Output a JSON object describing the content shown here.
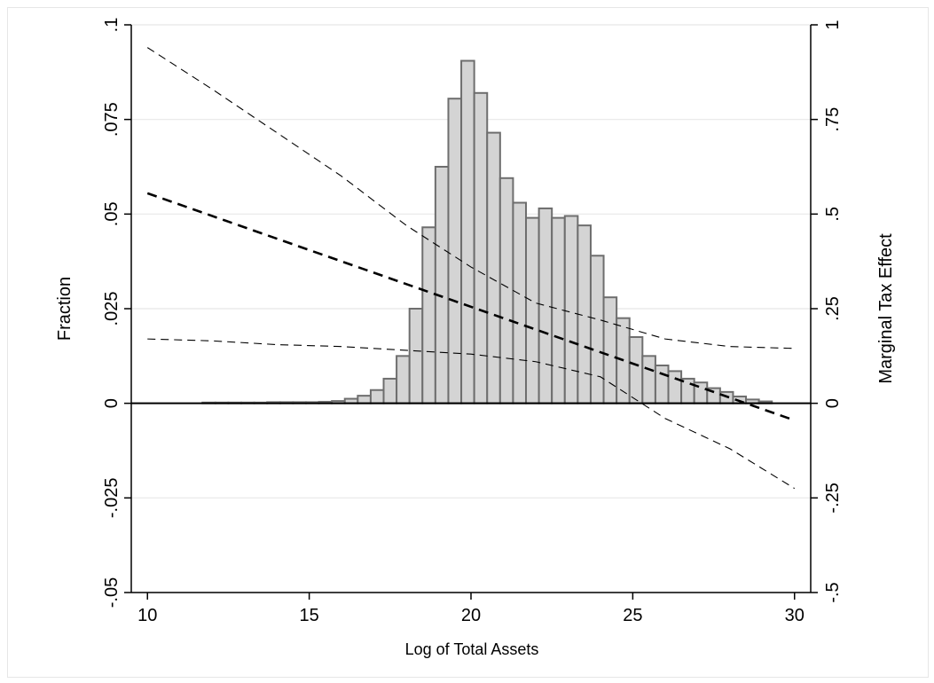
{
  "chart_data": {
    "type": "bar",
    "xlabel": "Log of Total Assets",
    "ylabel_left": "Fraction",
    "ylabel_right": "Marginal Tax Effect",
    "xlim": [
      9.5,
      30.5
    ],
    "ylim_left": [
      -0.05,
      0.1
    ],
    "ylim_right": [
      -0.5,
      1.0
    ],
    "x_ticks": [
      "10",
      "15",
      "20",
      "25",
      "30"
    ],
    "y_ticks_left": [
      "-.05",
      "-.025",
      "0",
      ".025",
      ".05",
      ".075",
      ".1"
    ],
    "y_ticks_right": [
      "-.5",
      "-.25",
      "0",
      ".25",
      ".5",
      ".75",
      "1"
    ],
    "grid": true,
    "histogram": {
      "bin_width": 0.4,
      "bins": [
        {
          "x": 11.9,
          "y": 0.0002
        },
        {
          "x": 12.3,
          "y": 0.0002
        },
        {
          "x": 12.7,
          "y": 0.0002
        },
        {
          "x": 13.1,
          "y": 0.0002
        },
        {
          "x": 13.5,
          "y": 0.0002
        },
        {
          "x": 13.9,
          "y": 0.0003
        },
        {
          "x": 14.3,
          "y": 0.0003
        },
        {
          "x": 14.7,
          "y": 0.0003
        },
        {
          "x": 15.1,
          "y": 0.0003
        },
        {
          "x": 15.5,
          "y": 0.0004
        },
        {
          "x": 15.9,
          "y": 0.0006
        },
        {
          "x": 16.3,
          "y": 0.0012
        },
        {
          "x": 16.7,
          "y": 0.002
        },
        {
          "x": 17.1,
          "y": 0.0035
        },
        {
          "x": 17.5,
          "y": 0.0065
        },
        {
          "x": 17.9,
          "y": 0.0125
        },
        {
          "x": 18.3,
          "y": 0.025
        },
        {
          "x": 18.7,
          "y": 0.0465
        },
        {
          "x": 19.1,
          "y": 0.0625
        },
        {
          "x": 19.5,
          "y": 0.0805
        },
        {
          "x": 19.9,
          "y": 0.0905
        },
        {
          "x": 20.3,
          "y": 0.082
        },
        {
          "x": 20.7,
          "y": 0.0715
        },
        {
          "x": 21.1,
          "y": 0.0595
        },
        {
          "x": 21.5,
          "y": 0.053
        },
        {
          "x": 21.9,
          "y": 0.049
        },
        {
          "x": 22.3,
          "y": 0.0515
        },
        {
          "x": 22.7,
          "y": 0.049
        },
        {
          "x": 23.1,
          "y": 0.0495
        },
        {
          "x": 23.5,
          "y": 0.047
        },
        {
          "x": 23.9,
          "y": 0.039
        },
        {
          "x": 24.3,
          "y": 0.028
        },
        {
          "x": 24.7,
          "y": 0.0225
        },
        {
          "x": 25.1,
          "y": 0.0175
        },
        {
          "x": 25.5,
          "y": 0.0125
        },
        {
          "x": 25.9,
          "y": 0.01
        },
        {
          "x": 26.3,
          "y": 0.0085
        },
        {
          "x": 26.7,
          "y": 0.0065
        },
        {
          "x": 27.1,
          "y": 0.0055
        },
        {
          "x": 27.5,
          "y": 0.004
        },
        {
          "x": 27.9,
          "y": 0.003
        },
        {
          "x": 28.3,
          "y": 0.0018
        },
        {
          "x": 28.7,
          "y": 0.001
        },
        {
          "x": 29.1,
          "y": 0.0005
        }
      ]
    },
    "series": [
      {
        "axis": "right",
        "style": "dashed-thick",
        "x": [
          10,
          30
        ],
        "y": [
          0.555,
          -0.045
        ]
      },
      {
        "axis": "right",
        "style": "dashed-thin",
        "x": [
          10,
          12,
          14,
          16,
          18,
          20,
          22,
          24,
          26,
          28,
          30
        ],
        "y": [
          0.94,
          0.83,
          0.715,
          0.6,
          0.47,
          0.36,
          0.265,
          0.22,
          0.17,
          0.15,
          0.145
        ]
      },
      {
        "axis": "right",
        "style": "dashed-thin",
        "x": [
          10,
          12,
          14,
          16,
          18,
          20,
          22,
          24,
          26,
          28,
          30
        ],
        "y": [
          0.17,
          0.165,
          0.155,
          0.15,
          0.14,
          0.13,
          0.11,
          0.07,
          -0.04,
          -0.12,
          -0.225
        ]
      }
    ]
  }
}
